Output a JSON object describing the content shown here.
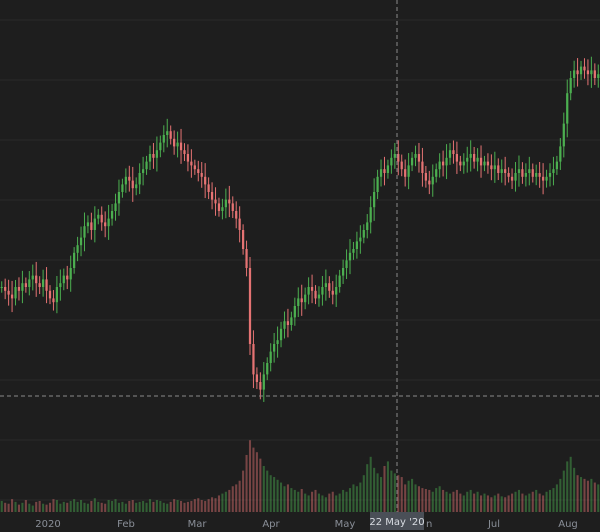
{
  "chart_data": {
    "type": "candlestick",
    "x_axis": {
      "tick_labels": [
        "2020",
        "Feb",
        "Mar",
        "Apr",
        "May",
        "Jun",
        "Jul",
        "Aug"
      ]
    },
    "crosshair": {
      "date_label": "22 May '20"
    },
    "colors": {
      "background": "#1e1e1e",
      "grid": "#2a2a2a",
      "up": "#4caf50",
      "down": "#e57373",
      "crosshair": "#8a8a8a"
    },
    "price_range": [
      0,
      100
    ],
    "volume_range": [
      0,
      100
    ],
    "close_series": [
      35,
      34,
      33,
      32,
      35,
      34,
      36,
      35,
      37,
      38,
      36,
      35,
      37,
      34,
      32,
      31,
      35,
      36,
      38,
      37,
      40,
      44,
      46,
      48,
      51,
      52,
      50,
      53,
      54,
      52,
      51,
      53,
      55,
      57,
      60,
      62,
      64,
      63,
      61,
      62,
      65,
      66,
      68,
      70,
      69,
      71,
      73,
      75,
      76,
      74,
      72,
      73,
      71,
      70,
      68,
      67,
      66,
      65,
      64,
      62,
      60,
      58,
      57,
      55,
      56,
      58,
      57,
      55,
      53,
      50,
      45,
      40,
      20,
      12,
      10,
      8,
      12,
      15,
      18,
      20,
      21,
      24,
      26,
      25,
      27,
      30,
      32,
      31,
      33,
      35,
      34,
      32,
      33,
      35,
      36,
      34,
      33,
      35,
      38,
      40,
      42,
      44,
      45,
      47,
      48,
      50,
      52,
      56,
      60,
      64,
      66,
      65,
      67,
      69,
      70,
      68,
      66,
      64,
      67,
      69,
      70,
      68,
      65,
      63,
      62,
      64,
      66,
      68,
      67,
      69,
      71,
      70,
      68,
      67,
      68,
      69,
      70,
      68,
      69,
      67,
      68,
      67,
      66,
      67,
      65,
      66,
      65,
      64,
      63,
      65,
      66,
      64,
      65,
      66,
      64,
      65,
      64,
      63,
      64,
      65,
      66,
      68,
      72,
      78,
      86,
      90,
      92,
      91,
      93,
      92,
      91,
      92,
      90,
      91
    ],
    "volume_series": [
      12,
      10,
      9,
      14,
      11,
      8,
      10,
      13,
      9,
      7,
      11,
      12,
      9,
      8,
      10,
      14,
      13,
      9,
      11,
      10,
      12,
      14,
      11,
      13,
      10,
      9,
      12,
      15,
      11,
      10,
      9,
      13,
      12,
      14,
      10,
      11,
      9,
      12,
      13,
      10,
      11,
      12,
      10,
      14,
      11,
      13,
      12,
      10,
      9,
      11,
      14,
      13,
      12,
      10,
      11,
      12,
      14,
      15,
      13,
      12,
      14,
      16,
      15,
      18,
      20,
      22,
      24,
      28,
      30,
      34,
      45,
      62,
      78,
      70,
      65,
      58,
      50,
      45,
      40,
      38,
      35,
      32,
      28,
      30,
      26,
      24,
      22,
      25,
      20,
      18,
      22,
      24,
      20,
      18,
      16,
      20,
      22,
      18,
      20,
      24,
      22,
      26,
      30,
      28,
      32,
      40,
      52,
      60,
      48,
      42,
      38,
      50,
      55,
      45,
      42,
      40,
      38,
      30,
      34,
      36,
      30,
      28,
      26,
      25,
      24,
      22,
      26,
      28,
      24,
      22,
      20,
      22,
      24,
      20,
      18,
      22,
      24,
      20,
      22,
      18,
      20,
      18,
      16,
      18,
      20,
      17,
      16,
      18,
      20,
      22,
      24,
      20,
      18,
      20,
      22,
      24,
      20,
      18,
      22,
      24,
      26,
      30,
      36,
      45,
      55,
      60,
      48,
      40,
      38,
      36,
      34,
      36,
      32,
      30
    ]
  }
}
